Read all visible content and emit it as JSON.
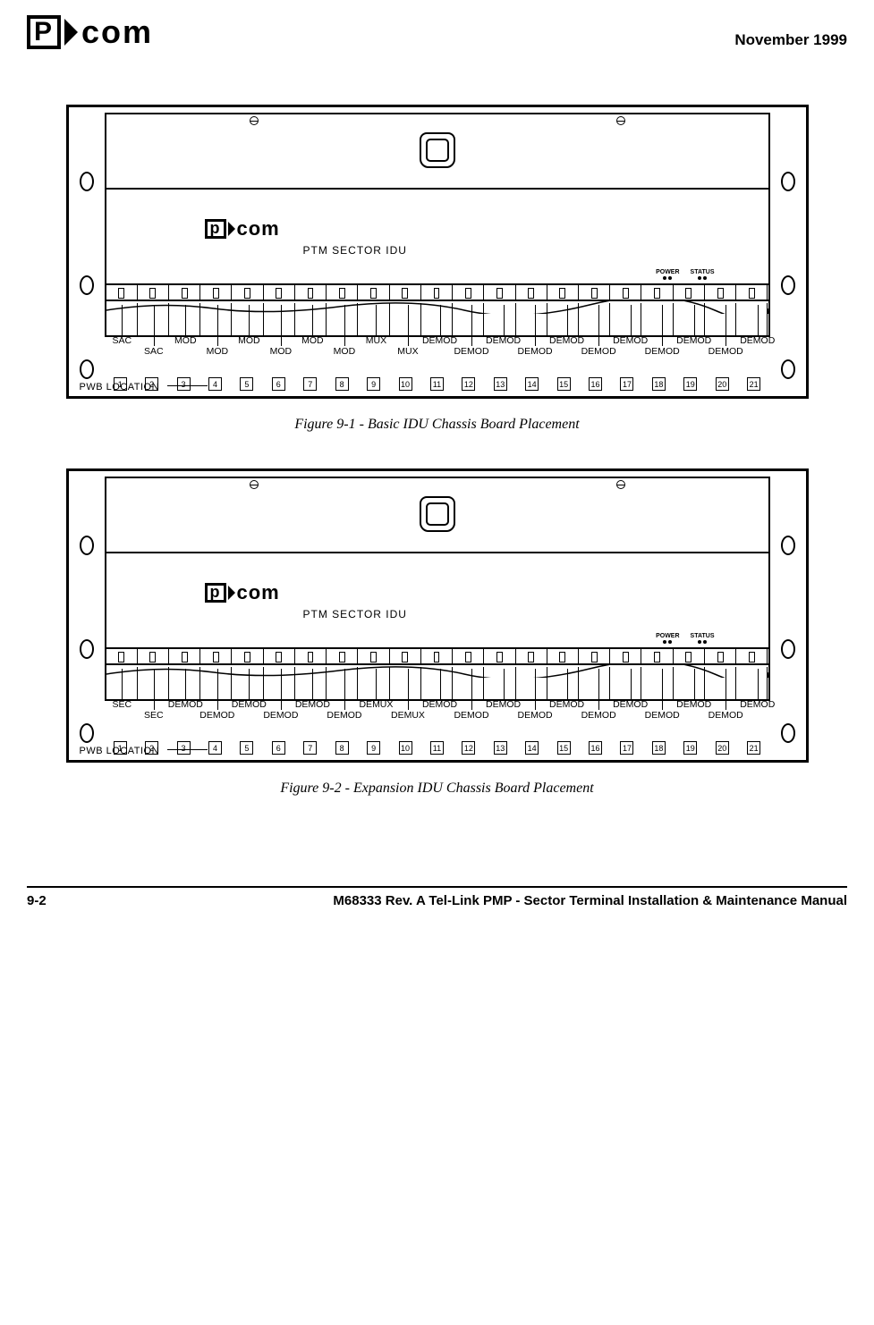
{
  "header": {
    "logo_text": "com",
    "date": "November 1999"
  },
  "figures": [
    {
      "caption": "Figure 9-1 - Basic IDU Chassis Board Placement",
      "ptm_label": "PTM SECTOR IDU",
      "pwb": "PWB LOCATION",
      "power": "POWER",
      "status": "STATUS",
      "slot_numbers": [
        "1",
        "2",
        "3",
        "4",
        "5",
        "6",
        "7",
        "8",
        "9",
        "10",
        "11",
        "12",
        "13",
        "14",
        "15",
        "16",
        "17",
        "18",
        "19",
        "20",
        "21"
      ],
      "labels_top": [
        {
          "slot": 1,
          "text": "SAC"
        },
        {
          "slot": 3,
          "text": "MOD"
        },
        {
          "slot": 5,
          "text": "MOD"
        },
        {
          "slot": 7,
          "text": "MOD"
        },
        {
          "slot": 9,
          "text": "MUX"
        },
        {
          "slot": 11,
          "text": "DEMOD"
        },
        {
          "slot": 13,
          "text": "DEMOD"
        },
        {
          "slot": 15,
          "text": "DEMOD"
        },
        {
          "slot": 17,
          "text": "DEMOD"
        },
        {
          "slot": 19,
          "text": "DEMOD"
        },
        {
          "slot": 21,
          "text": "DEMOD"
        }
      ],
      "labels_bot": [
        {
          "slot": 2,
          "text": "SAC"
        },
        {
          "slot": 4,
          "text": "MOD"
        },
        {
          "slot": 6,
          "text": "MOD"
        },
        {
          "slot": 8,
          "text": "MOD"
        },
        {
          "slot": 10,
          "text": "MUX"
        },
        {
          "slot": 12,
          "text": "DEMOD"
        },
        {
          "slot": 14,
          "text": "DEMOD"
        },
        {
          "slot": 16,
          "text": "DEMOD"
        },
        {
          "slot": 18,
          "text": "DEMOD"
        },
        {
          "slot": 20,
          "text": "DEMOD"
        }
      ]
    },
    {
      "caption": "Figure 9-2 - Expansion IDU Chassis Board Placement",
      "ptm_label": "PTM SECTOR IDU",
      "pwb": "PWB LOCATION",
      "power": "POWER",
      "status": "STATUS",
      "slot_numbers": [
        "1",
        "2",
        "3",
        "4",
        "5",
        "6",
        "7",
        "8",
        "9",
        "10",
        "11",
        "12",
        "13",
        "14",
        "15",
        "16",
        "17",
        "18",
        "19",
        "20",
        "21"
      ],
      "labels_top": [
        {
          "slot": 1,
          "text": "SEC"
        },
        {
          "slot": 3,
          "text": "DEMOD"
        },
        {
          "slot": 5,
          "text": "DEMOD"
        },
        {
          "slot": 7,
          "text": "DEMOD"
        },
        {
          "slot": 9,
          "text": "DEMUX"
        },
        {
          "slot": 11,
          "text": "DEMOD"
        },
        {
          "slot": 13,
          "text": "DEMOD"
        },
        {
          "slot": 15,
          "text": "DEMOD"
        },
        {
          "slot": 17,
          "text": "DEMOD"
        },
        {
          "slot": 19,
          "text": "DEMOD"
        },
        {
          "slot": 21,
          "text": "DEMOD"
        }
      ],
      "labels_bot": [
        {
          "slot": 2,
          "text": "SEC"
        },
        {
          "slot": 4,
          "text": "DEMOD"
        },
        {
          "slot": 6,
          "text": "DEMOD"
        },
        {
          "slot": 8,
          "text": "DEMOD"
        },
        {
          "slot": 10,
          "text": "DEMUX"
        },
        {
          "slot": 12,
          "text": "DEMOD"
        },
        {
          "slot": 14,
          "text": "DEMOD"
        },
        {
          "slot": 16,
          "text": "DEMOD"
        },
        {
          "slot": 18,
          "text": "DEMOD"
        },
        {
          "slot": 20,
          "text": "DEMOD"
        }
      ]
    }
  ],
  "footer": {
    "page": "9-2",
    "title": "M68333 Rev. A Tel-Link PMP - Sector Terminal Installation & Maintenance Manual"
  },
  "style": {
    "slot_count": 21,
    "frame_width": 830,
    "inner_margin": 40,
    "colors": {
      "line": "#000000",
      "bg": "#ffffff"
    },
    "font_sizes": {
      "date": 17,
      "caption": 16,
      "label": 10.5,
      "slotnum": 9,
      "footer": 15
    }
  }
}
